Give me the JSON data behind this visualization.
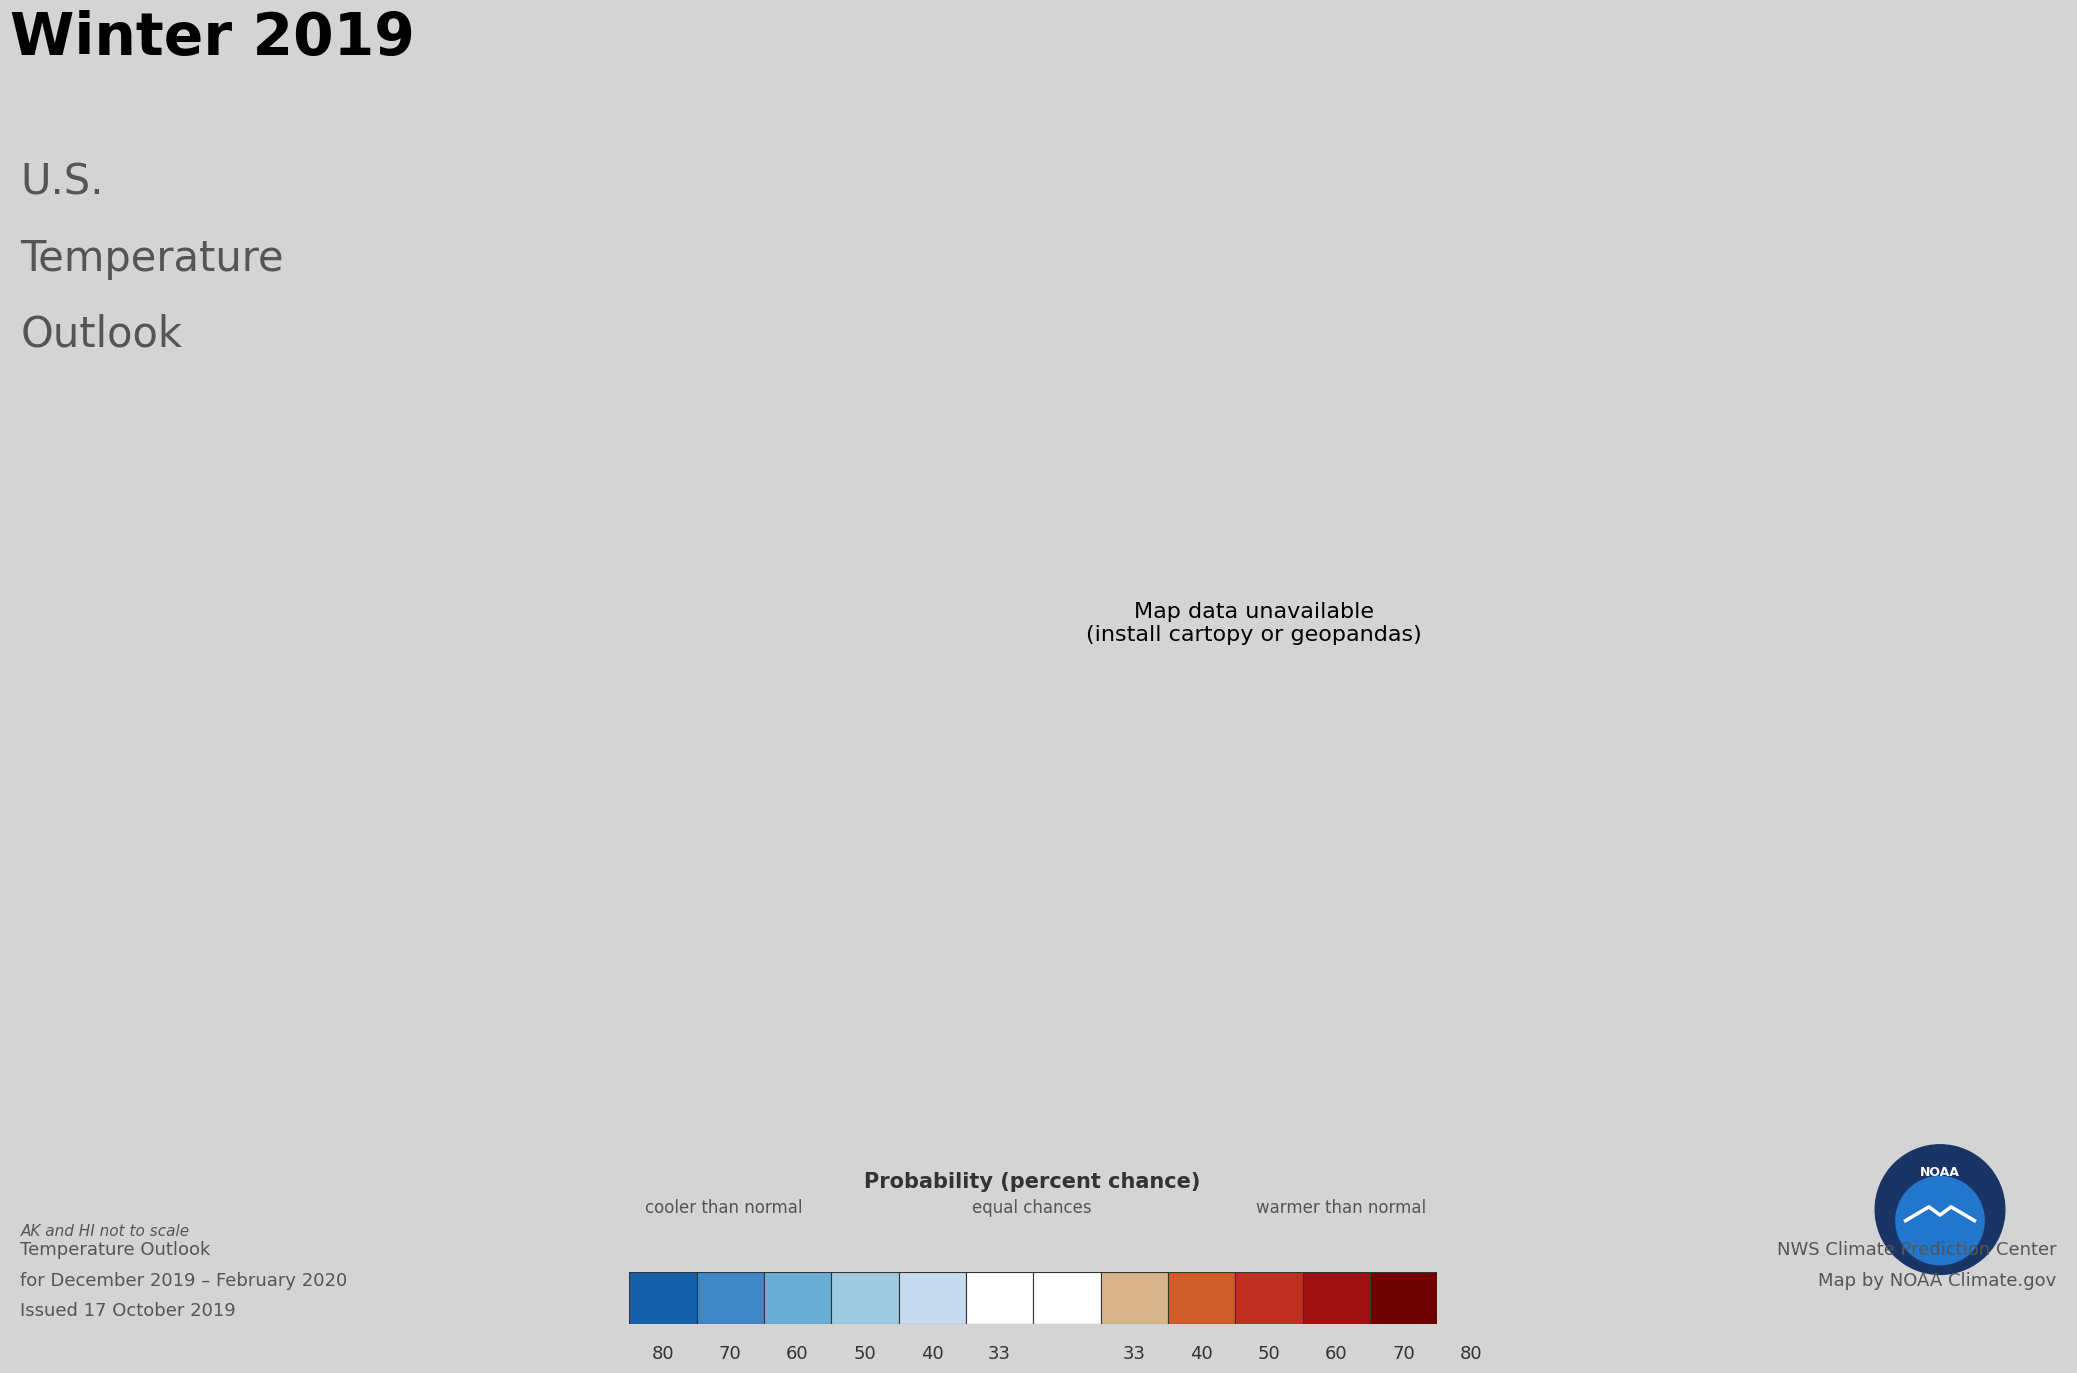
{
  "title_line1": "Winter 2019",
  "title_line2": "U.S.",
  "title_line3": "Temperature",
  "title_line4": "Outlook",
  "subtitle_left_line1": "Temperature Outlook",
  "subtitle_left_line2": "for December 2019 – February 2020",
  "subtitle_left_line3": "Issued 17 October 2019",
  "subtitle_right_line1": "NWS Climate Prediction Center",
  "subtitle_right_line2": "Map by NOAA Climate.gov",
  "ak_hi_note": "AK and HI not to scale",
  "colorbar_title": "Probability (percent chance)",
  "colorbar_left_label": "cooler than normal",
  "colorbar_center_label": "equal chances",
  "colorbar_right_label": "warmer than normal",
  "background_color": "#d4d4d4",
  "inset_bg_color": "#e0e0e0",
  "state_border_color": "#666666",
  "state_colors": {
    "WA": "#c8956c",
    "OR": "#c8956c",
    "CA": "#cd5c28",
    "NV": "#cd5c28",
    "ID": "#c8956c",
    "MT": "#c8956c",
    "WY": "#cd5c28",
    "UT": "#cd5c28",
    "CO": "#cd5c28",
    "AZ": "#cd5c28",
    "NM": "#cd5c28",
    "ND": "#ffffff",
    "SD": "#ffffff",
    "NE": "#d8b48a",
    "KS": "#cd5c28",
    "OK": "#cd5c28",
    "TX": "#cd5c28",
    "MN": "#ffffff",
    "IA": "#ffffff",
    "MO": "#d8b48a",
    "AR": "#cd5c28",
    "LA": "#cd5c28",
    "WI": "#ffffff",
    "MI": "#ffffff",
    "IL": "#ffffff",
    "IN": "#ffffff",
    "OH": "#d8b48a",
    "KY": "#d8b48a",
    "TN": "#d8b48a",
    "MS": "#cd5c28",
    "AL": "#cd5c28",
    "GA": "#cd5c28",
    "FL": "#cd5c28",
    "SC": "#cd5c28",
    "NC": "#d8b48a",
    "VA": "#d8b48a",
    "WV": "#d8b48a",
    "MD": "#c8956c",
    "DE": "#c8956c",
    "NJ": "#c8956c",
    "PA": "#c8956c",
    "NY": "#c8956c",
    "CT": "#c8956c",
    "RI": "#c8956c",
    "MA": "#c8956c",
    "VT": "#c8956c",
    "NH": "#c8956c",
    "ME": "#cd5c28",
    "AK": "#cc3300",
    "HI": "#cc3300",
    "DC": "#c8956c"
  },
  "legend_bar_colors": [
    "#1560a8",
    "#3d87c4",
    "#6aaed6",
    "#9ecae1",
    "#c6dbef",
    "#ffffff",
    "#ffffff",
    "#d8b48a",
    "#cd5c28",
    "#c03020",
    "#a01010",
    "#700000"
  ],
  "legend_tick_labels": [
    "80",
    "70",
    "60",
    "50",
    "40",
    "33",
    "",
    "33",
    "40",
    "50",
    "60",
    "70",
    "80"
  ]
}
